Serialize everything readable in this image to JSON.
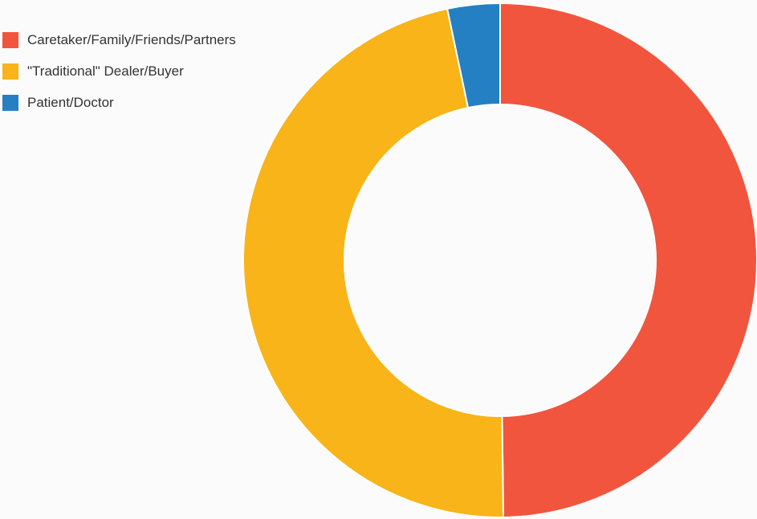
{
  "chart_data": {
    "type": "pie",
    "donut": true,
    "title": "",
    "legend_position": "top-left",
    "series": [
      {
        "name": "Caretaker/Family/Friends/Partners",
        "value": 49.8,
        "color": "#f1553e"
      },
      {
        "name": "\"Traditional\" Dealer/Buyer",
        "value": 46.9,
        "color": "#f8b418"
      },
      {
        "name": "Patient/Doctor",
        "value": 3.3,
        "color": "#2580c3"
      }
    ]
  }
}
